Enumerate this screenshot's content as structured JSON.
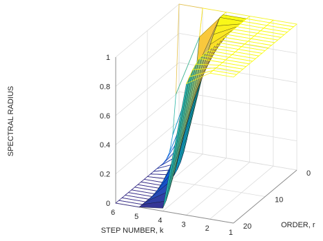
{
  "chart_data": {
    "type": "surface3d",
    "xlabel": "STEP NUMBER, k",
    "ylabel": "ORDER, r",
    "zlabel": "SPECTRAL RADIUS",
    "x_ticks": [
      "1",
      "2",
      "3",
      "4",
      "5",
      "6"
    ],
    "y_ticks": [
      "0",
      "10",
      "20"
    ],
    "z_ticks": [
      "0",
      "0.2",
      "0.4",
      "0.6",
      "0.8",
      "1"
    ],
    "xlim": [
      1,
      6
    ],
    "ylim": [
      0,
      20
    ],
    "zlim": [
      0,
      1
    ],
    "grid": true,
    "colormap": "parula",
    "colormap_colors": [
      "#352a87",
      "#0f5cdd",
      "#1481d6",
      "#06a4ca",
      "#2eb7a4",
      "#87bf77",
      "#d1bb59",
      "#fec832",
      "#f9fb0e"
    ],
    "steps": [
      1,
      2,
      3,
      4,
      5,
      6
    ],
    "orders": [
      0,
      1,
      2,
      3,
      4,
      5,
      6,
      7,
      8,
      9,
      10,
      11,
      12,
      13,
      14,
      15,
      16,
      17,
      18,
      19,
      20
    ],
    "spectral_radius_by_step": [
      {
        "k": 1,
        "values": [
          1,
          1,
          1,
          1,
          1,
          1,
          1,
          1,
          1,
          1,
          1,
          1,
          1,
          1,
          1,
          1,
          1,
          1,
          1,
          1,
          1
        ]
      },
      {
        "k": 2,
        "values": [
          1,
          1,
          1,
          1,
          1,
          1,
          1,
          1,
          1,
          1,
          1,
          1,
          1,
          1,
          1,
          1,
          1,
          1,
          1,
          1,
          1
        ]
      },
      {
        "k": 3,
        "values": [
          1,
          1,
          1,
          1,
          1,
          1,
          1,
          1,
          1,
          1,
          1,
          1,
          1,
          1,
          1,
          1,
          1,
          0.98,
          0.96,
          0.93,
          0.9
        ]
      },
      {
        "k": 4,
        "values": [
          1,
          1,
          1,
          0.96,
          0.92,
          0.87,
          0.82,
          0.77,
          0.72,
          0.67,
          0.62,
          0.56,
          0.5,
          0.43,
          0.36,
          0.29,
          0.22,
          0.16,
          0.1,
          0.05,
          0.02
        ]
      },
      {
        "k": 5,
        "values": [
          1,
          0.82,
          0.62,
          0.45,
          0.3,
          0.19,
          0.12,
          0.07,
          0.04,
          0.02,
          0.01,
          0,
          0,
          0,
          0,
          0,
          0,
          0,
          0,
          0,
          0
        ]
      },
      {
        "k": 6,
        "values": [
          1,
          0.4,
          0.14,
          0.04,
          0.01,
          0,
          0,
          0,
          0,
          0,
          0,
          0,
          0,
          0,
          0,
          0,
          0,
          0,
          0,
          0,
          0
        ]
      }
    ]
  }
}
